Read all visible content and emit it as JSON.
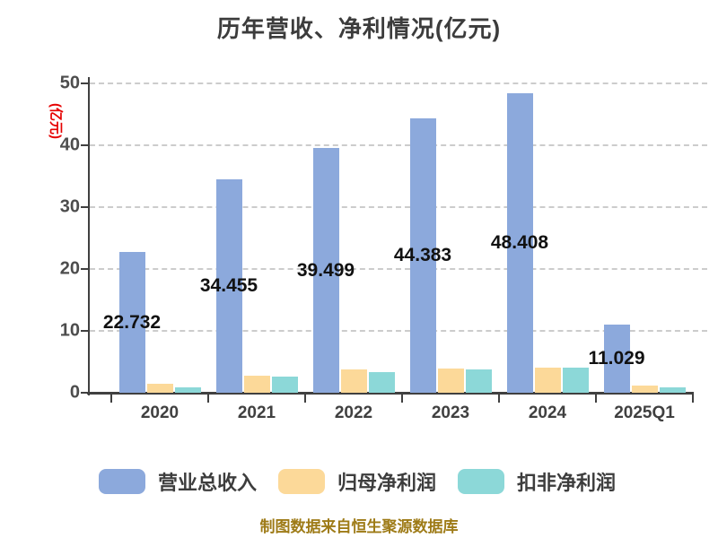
{
  "title": "历年营收、净利情况(亿元)",
  "y_axis": {
    "name": "(亿元)",
    "name_color": "#e60000",
    "ticks": [
      0,
      10,
      20,
      30,
      40,
      50
    ]
  },
  "caption": {
    "text": "制图数据来自恒生聚源数据库",
    "color": "#9e7b17"
  },
  "colors": {
    "revenue": "#8ca9dc",
    "net_profit": "#fcd999",
    "deducted_net_profit": "#8cd8d8",
    "axis": "#404040",
    "grid": "#cccccc",
    "value_label": "#111111"
  },
  "legend": {
    "items": [
      {
        "key": "revenue",
        "label": "营业总收入",
        "color": "#8ca9dc"
      },
      {
        "key": "net-profit",
        "label": "归母净利润",
        "color": "#fcd999"
      },
      {
        "key": "deducted-net-profit",
        "label": "扣非净利润",
        "color": "#8cd8d8"
      }
    ]
  },
  "chart_data": {
    "type": "bar",
    "title": "历年营收、净利情况(亿元)",
    "ylabel": "(亿元)",
    "ylim": [
      0,
      50
    ],
    "y_interval": 10,
    "grid": "horizontal-dashed",
    "legend_position": "bottom",
    "categories": [
      "2020",
      "2021",
      "2022",
      "2023",
      "2024",
      "2025Q1"
    ],
    "series": [
      {
        "name": "营业总收入",
        "key": "revenue",
        "color": "#8ca9dc",
        "values": [
          22.732,
          34.455,
          39.499,
          44.383,
          48.408,
          11.029
        ],
        "labels": [
          "22.732",
          "34.455",
          "39.499",
          "44.383",
          "48.408",
          "11.029"
        ]
      },
      {
        "name": "归母净利润",
        "key": "net-profit",
        "color": "#fcd999",
        "values": [
          1.4,
          2.8,
          3.8,
          3.9,
          4.0,
          1.1
        ],
        "labels": []
      },
      {
        "name": "扣非净利润",
        "key": "deducted-net-profit",
        "color": "#8cd8d8",
        "values": [
          0.8,
          2.6,
          3.4,
          3.8,
          4.1,
          0.8
        ],
        "labels": []
      }
    ]
  }
}
